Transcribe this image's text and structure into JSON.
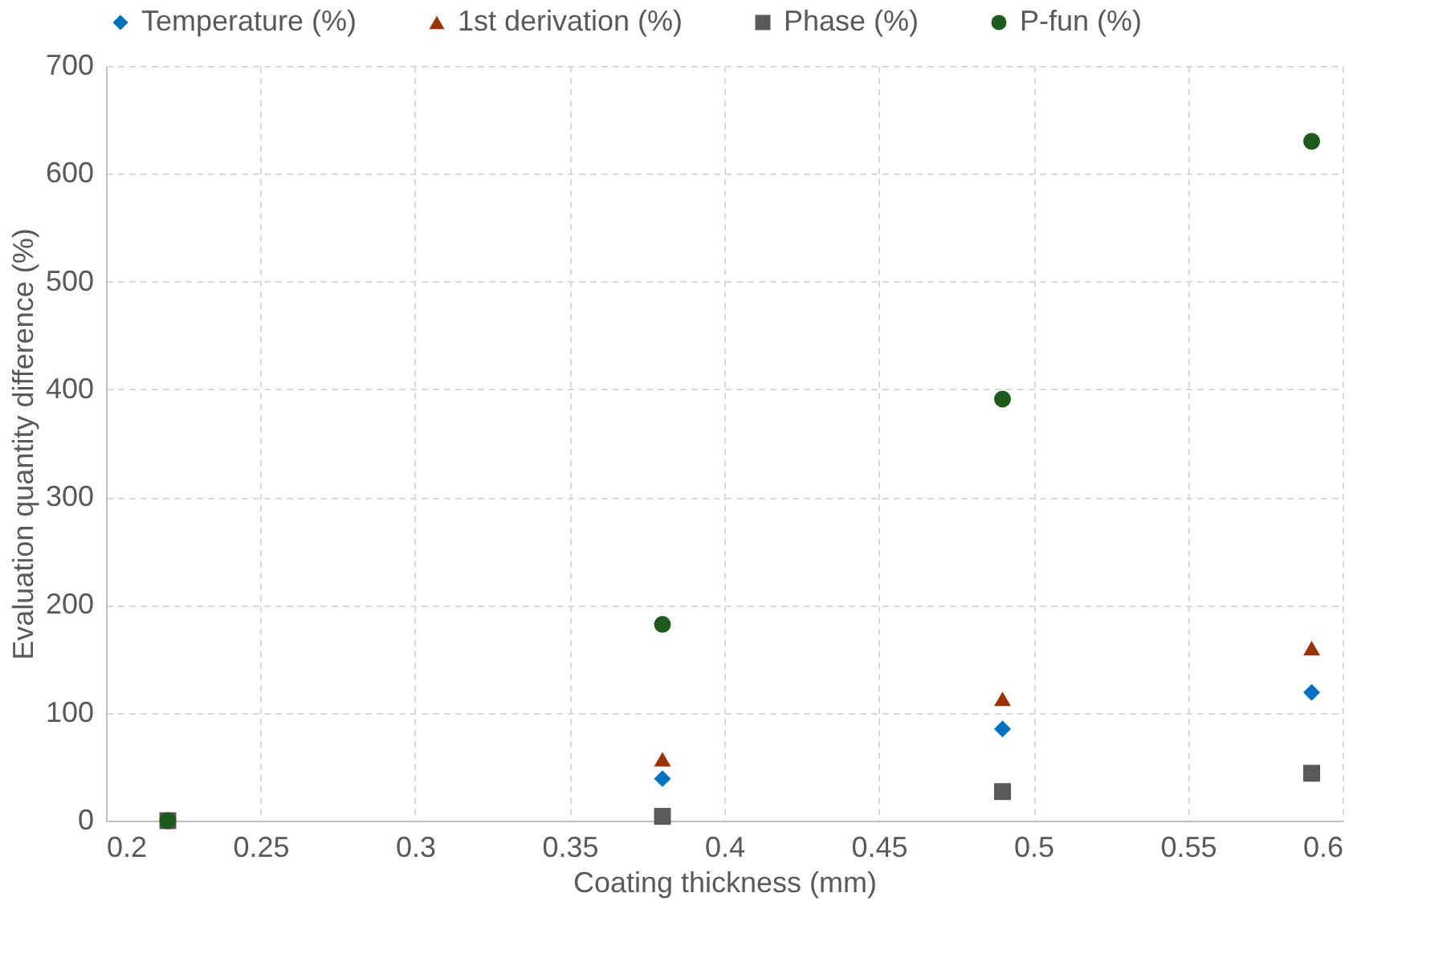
{
  "chart_data": {
    "type": "scatter",
    "xlabel": "Coating thickness (mm)",
    "ylabel": "Evaluation quantity difference (%)",
    "x": [
      0.22,
      0.38,
      0.49,
      0.59
    ],
    "series": [
      {
        "name": "Temperature (%)",
        "color": "#0070c0",
        "marker": "diamond",
        "values": [
          null,
          39,
          85,
          119
        ]
      },
      {
        "name": "1st derivation (%)",
        "color": "#993300",
        "marker": "triangle",
        "values": [
          null,
          57,
          113,
          160
        ]
      },
      {
        "name": "Phase (%)",
        "color": "#595959",
        "marker": "square",
        "values": [
          0,
          4,
          27,
          44
        ]
      },
      {
        "name": "P-fun (%)",
        "color": "#1e5a1e",
        "marker": "circle",
        "values": [
          0,
          182,
          391,
          630
        ]
      }
    ],
    "xlim": [
      0.2,
      0.6
    ],
    "xticks": [
      0.2,
      0.25,
      0.3,
      0.35,
      0.4,
      0.45,
      0.5,
      0.55,
      0.6
    ],
    "ylim": [
      0,
      700
    ],
    "yticks": [
      0,
      100,
      200,
      300,
      400,
      500,
      600,
      700
    ],
    "grid": true,
    "legend": "top"
  }
}
